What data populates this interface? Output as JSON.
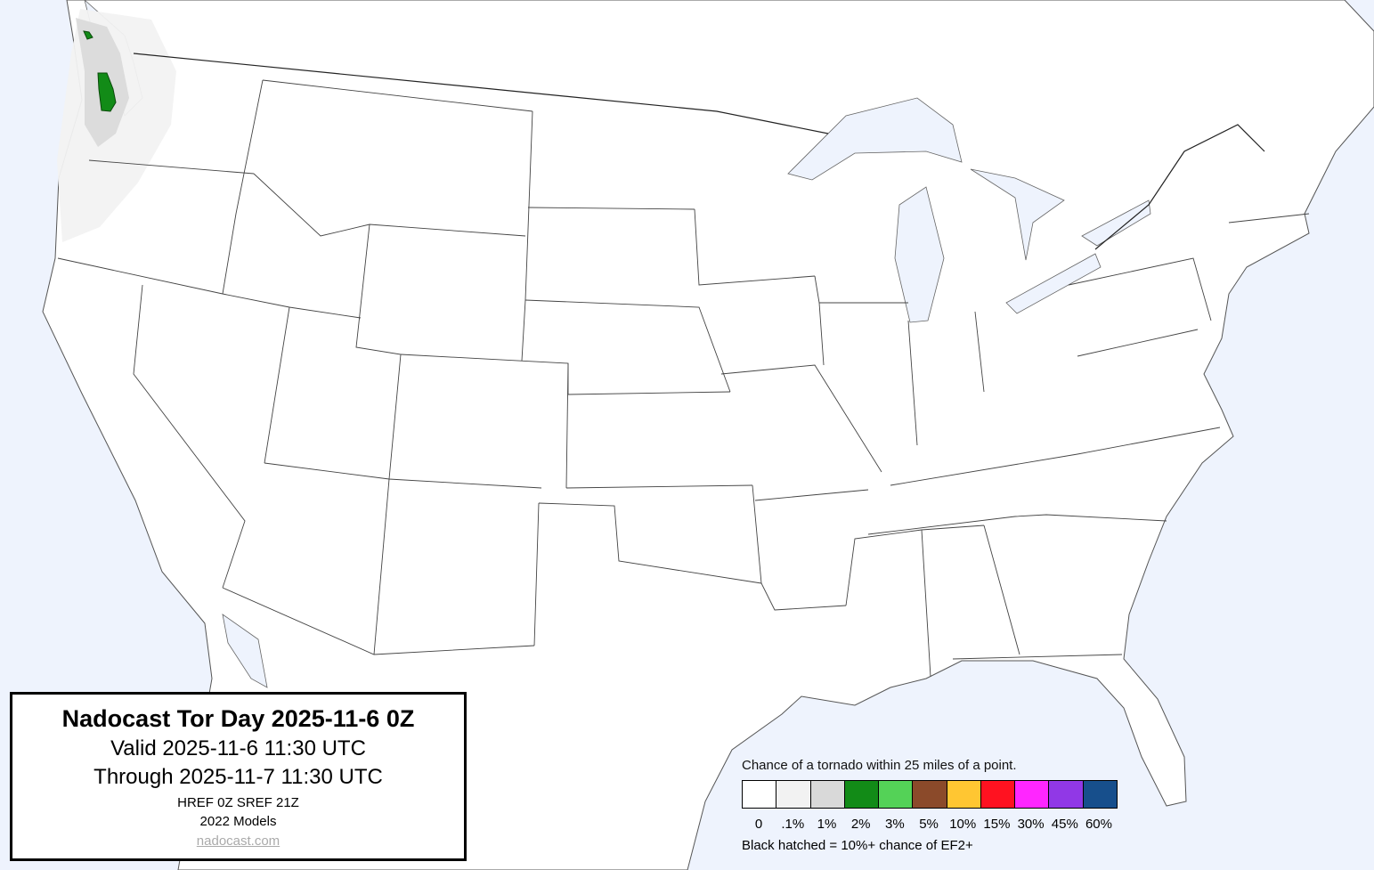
{
  "title_box": {
    "title": "Nadocast Tor Day 2025-11-6 0Z",
    "valid": "Valid 2025-11-6 11:30 UTC",
    "through": "Through 2025-11-7 11:30 UTC",
    "models_run": "HREF 0Z SREF 21Z",
    "models_version": "2022 Models",
    "link": "nadocast.com"
  },
  "legend": {
    "title": "Chance of a tornado within 25 miles of a point.",
    "levels": [
      {
        "label": "0",
        "color": "#ffffff"
      },
      {
        "label": ".1%",
        "color": "#f2f2f2"
      },
      {
        "label": "1%",
        "color": "#d9d9d9"
      },
      {
        "label": "2%",
        "color": "#128b17"
      },
      {
        "label": "3%",
        "color": "#54d257"
      },
      {
        "label": "5%",
        "color": "#8b4a2a"
      },
      {
        "label": "10%",
        "color": "#ffc632"
      },
      {
        "label": "15%",
        "color": "#ff1220"
      },
      {
        "label": "30%",
        "color": "#ff26ff"
      },
      {
        "label": "45%",
        "color": "#9138e6"
      },
      {
        "label": "60%",
        "color": "#174f8c"
      }
    ],
    "footnote": "Black hatched = 10%+ chance of EF2+"
  },
  "map": {
    "water_color": "#eef3fd",
    "land_color": "#ffffff",
    "forecast_areas": [
      {
        "region": "Pacific Northwest",
        "level": ".1%"
      },
      {
        "region": "Western Washington / Vancouver Island",
        "level": "1%"
      },
      {
        "region": "Washington coast",
        "level": "2%"
      }
    ]
  }
}
